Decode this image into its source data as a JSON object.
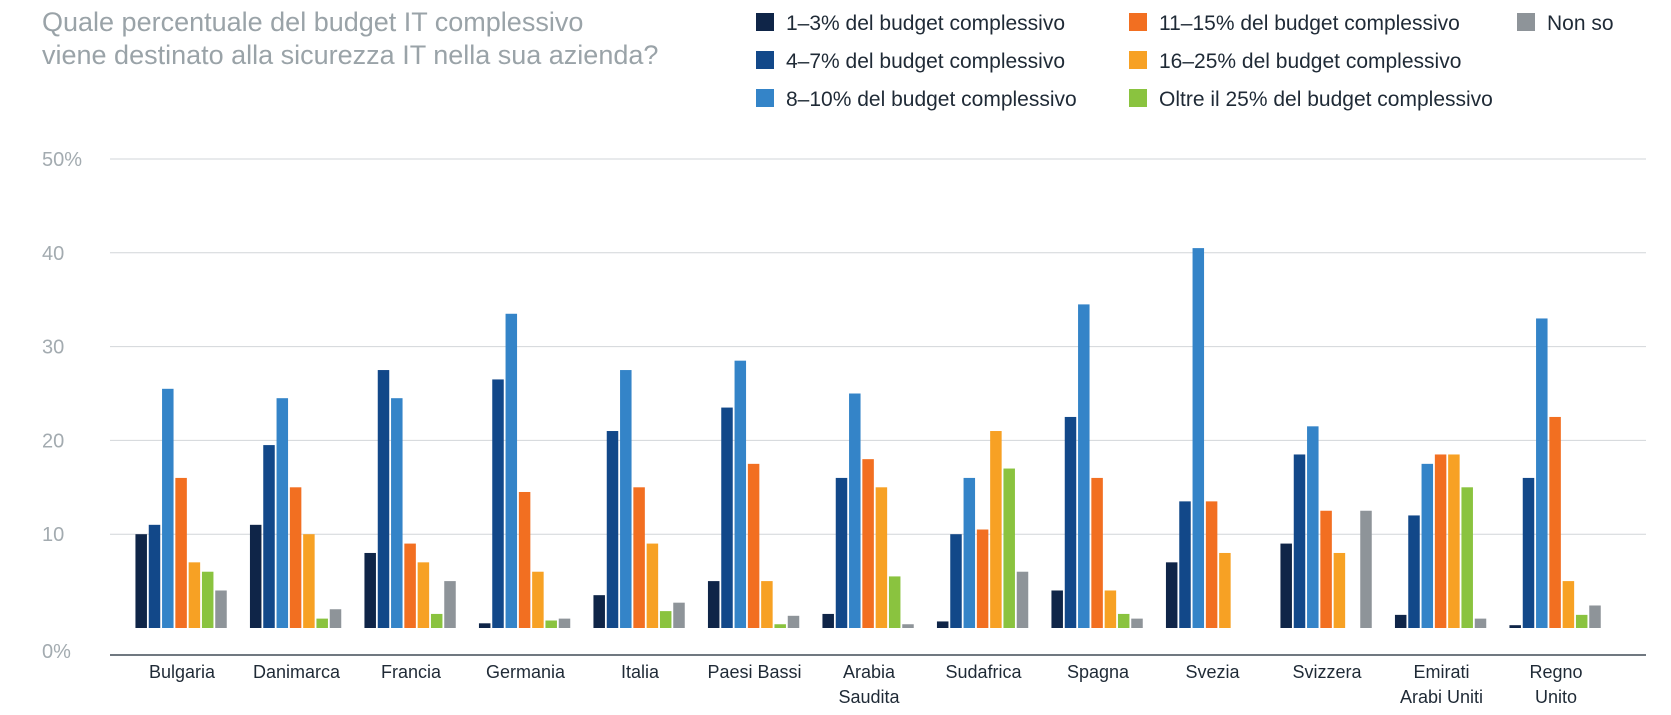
{
  "title_lines": [
    "Quale percentuale del budget IT complessivo",
    "viene destinato alla sicurezza IT nella sua azienda?"
  ],
  "chart_data": {
    "type": "bar",
    "title": "Quale percentuale del budget IT complessivo viene destinato alla sicurezza IT nella sua azienda?",
    "xlabel": "",
    "ylabel": "",
    "ylim": [
      0,
      50
    ],
    "yticks": [
      "0%",
      "10",
      "20",
      "30",
      "40",
      "50%"
    ],
    "grid": true,
    "legend_position": "top-right",
    "categories": [
      [
        "Bulgaria"
      ],
      [
        "Danimarca"
      ],
      [
        "Francia"
      ],
      [
        "Germania"
      ],
      [
        "Italia"
      ],
      [
        "Paesi Bassi"
      ],
      [
        "Arabia",
        "Saudita"
      ],
      [
        "Sudafrica"
      ],
      [
        "Spagna"
      ],
      [
        "Svezia"
      ],
      [
        "Svizzera"
      ],
      [
        "Emirati",
        "Arabi Uniti"
      ],
      [
        "Regno",
        "Unito"
      ]
    ],
    "series": [
      {
        "name": "1–3% del budget complessivo",
        "color": "#0f2548",
        "values": [
          10,
          11,
          8,
          0.5,
          3.5,
          5,
          1.5,
          0.7,
          4,
          7,
          9,
          1.4,
          0.3
        ]
      },
      {
        "name": "4–7% del budget complessivo",
        "color": "#124889",
        "values": [
          11,
          19.5,
          27.5,
          26.5,
          21,
          23.5,
          16,
          10,
          22.5,
          13.5,
          18.5,
          12,
          16
        ]
      },
      {
        "name": "8–10% del budget complessivo",
        "color": "#3484c8",
        "values": [
          25.5,
          24.5,
          24.5,
          33.5,
          27.5,
          28.5,
          25,
          16,
          34.5,
          40.5,
          21.5,
          17.5,
          33
        ]
      },
      {
        "name": "11–15% del budget complessivo",
        "color": "#f26f21",
        "values": [
          16,
          15,
          9,
          14.5,
          15,
          17.5,
          18,
          10.5,
          16,
          13.5,
          12.5,
          18.5,
          22.5
        ]
      },
      {
        "name": "16–25% del budget complessivo",
        "color": "#f7a124",
        "values": [
          7,
          10,
          7,
          6,
          9,
          5,
          15,
          21,
          4,
          8,
          8,
          18.5,
          5
        ]
      },
      {
        "name": "Oltre il 25% del budget complessivo",
        "color": "#8ac33f",
        "values": [
          6,
          1,
          1.5,
          0.8,
          1.8,
          0.4,
          5.5,
          17,
          1.5,
          0,
          0,
          15,
          1.4
        ]
      },
      {
        "name": "Non so",
        "color": "#8e9499",
        "values": [
          4,
          2,
          5,
          1,
          2.7,
          1.3,
          0.4,
          6,
          1,
          0,
          12.5,
          1,
          2.4
        ]
      }
    ]
  }
}
